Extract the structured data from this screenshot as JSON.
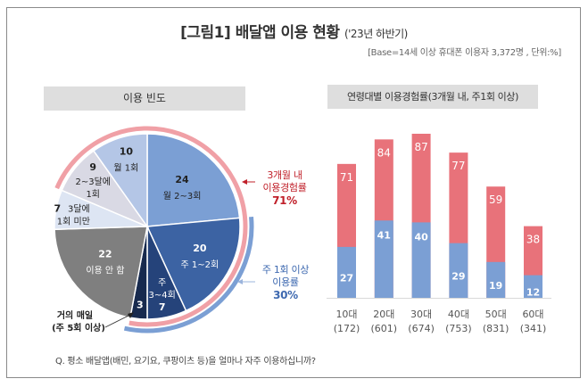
{
  "title": {
    "main": "[그림1] 배달앱 이용 현황",
    "sub": "('23년 하반기)"
  },
  "base_note": "[Base=14세 이상 휴대폰 이용자 3,372명 , 단위:%]",
  "left_panel": {
    "header": "이용 빈도"
  },
  "right_panel": {
    "header": "연령대별 이용경험률(3개월 내, 주1회 이상)"
  },
  "callouts": {
    "three_month": {
      "line1": "3개월 내",
      "line2": "이용경험률",
      "value": "71%"
    },
    "weekly": {
      "line1": "주 1회 이상",
      "line2": "이용률",
      "value": "30%"
    }
  },
  "question": "Q. 평소 배달앱(배민, 요기요, 쿠팡이츠 등)을 얼마나 자주 이용하십니까?",
  "colors": {
    "red": "#e8727a",
    "blue": "#7b9fd4",
    "red_text": "#c0202a",
    "blue_text": "#3e69b0"
  },
  "chart_data": [
    {
      "type": "pie",
      "title": "이용 빈도",
      "unit": "%",
      "start": "12 o'clock, clockwise",
      "slices": [
        {
          "label": "월 2~3회",
          "value": 24,
          "color": "#7b9fd4"
        },
        {
          "label": "주 1~2회",
          "value": 20,
          "color": "#3c63a3"
        },
        {
          "label": "주 3~4회",
          "value": 7,
          "color": "#25437a"
        },
        {
          "label": "거의 매일 (주 5회 이상)",
          "value": 3,
          "color": "#172a4e"
        },
        {
          "label": "이용 안 함",
          "value": 22,
          "color": "#7f7f7f"
        },
        {
          "label": "3달에 1회 미만",
          "value": 7,
          "color": "#dde5f3"
        },
        {
          "label": "2~3달에 1회",
          "value": 9,
          "color": "#d9d9e4"
        },
        {
          "label": "월 1회",
          "value": 10,
          "color": "#b4c6e6"
        }
      ],
      "annotations": [
        {
          "text": "3개월 내 이용경험률 71%",
          "spans": [
            "월 1회",
            "월 2~3회",
            "주 1~2회",
            "주 3~4회",
            "거의 매일 (주 5회 이상)",
            "2~3달에 1회"
          ]
        },
        {
          "text": "주 1회 이상 이용률 30%",
          "spans": [
            "주 1~2회",
            "주 3~4회",
            "거의 매일 (주 5회 이상)"
          ]
        }
      ]
    },
    {
      "type": "bar",
      "title": "연령대별 이용경험률(3개월 내, 주1회 이상)",
      "categories": [
        "10대",
        "20대",
        "30대",
        "40대",
        "50대",
        "60대"
      ],
      "category_sublabels": [
        "(172)",
        "(601)",
        "(674)",
        "(753)",
        "(831)",
        "(341)"
      ],
      "series": [
        {
          "name": "3개월 내 이용경험률",
          "values": [
            71,
            84,
            87,
            77,
            59,
            38
          ],
          "color": "#e8727a"
        },
        {
          "name": "주1회 이상 이용률",
          "values": [
            27,
            41,
            40,
            29,
            19,
            12
          ],
          "color": "#7b9fd4"
        }
      ],
      "overlay": "주1회 이상 bar drawn over 3개월 내 bar from baseline",
      "ylim": [
        0,
        100
      ],
      "grid": false,
      "unit": "%"
    }
  ]
}
